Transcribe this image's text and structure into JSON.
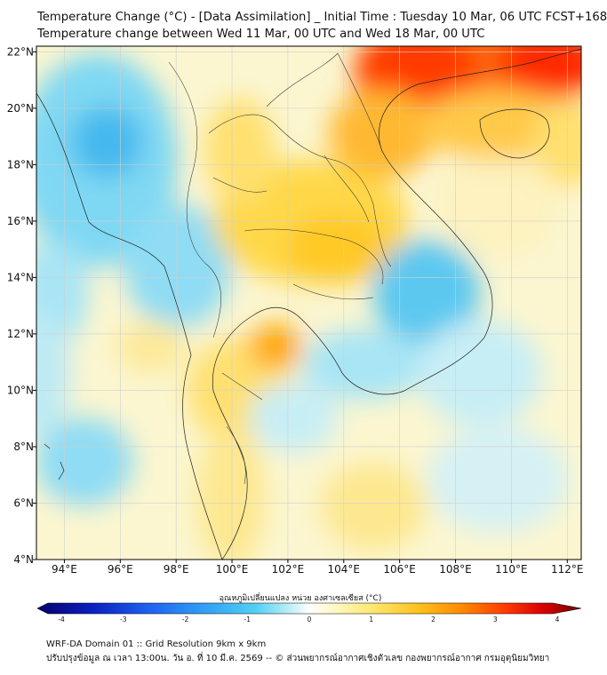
{
  "title_line1": "Temperature Change (°C) - [Data Assimilation] _ Initial Time : Tuesday 10 Mar, 06 UTC FCST+168",
  "title_line2": "Temperature change between Wed 11 Mar, 00 UTC and Wed 18 Mar, 00 UTC",
  "map": {
    "lon_range": [
      93,
      112.5
    ],
    "lat_range": [
      4,
      22.2
    ],
    "lon_ticks": [
      "94°E",
      "96°E",
      "98°E",
      "100°E",
      "102°E",
      "104°E",
      "106°E",
      "108°E",
      "110°E",
      "112°E"
    ],
    "lat_ticks": [
      "22°N",
      "20°N",
      "18°N",
      "16°N",
      "14°N",
      "12°N",
      "10°N",
      "8°N",
      "6°N",
      "4°N"
    ],
    "grid": true
  },
  "colorbar": {
    "label": "อุณหภูมิเปลี่ยนแปลง หน่วย องศาเซลเซียส (°C)",
    "ticks": [
      "-4",
      "-3",
      "-2",
      "-1",
      "0",
      "1",
      "2",
      "3",
      "4"
    ],
    "range": [
      -4,
      4
    ],
    "colors": [
      "#08006e",
      "#0a1fbf",
      "#1e5ef0",
      "#2f9cf5",
      "#4fd0f2",
      "#bdf0f5",
      "#ffffff",
      "#fff8c0",
      "#ffe66a",
      "#ffc21c",
      "#ff8a00",
      "#ff3a00",
      "#d80000",
      "#6e0000"
    ]
  },
  "footer_line1": "WRF-DA Domain 01 :: Grid Resolution 9km x 9km",
  "footer_line2": "ปรับปรุงข้อมูล ณ เวลา 13:00น. วัน อ. ที่ 10 มี.ค. 2569 -- © ส่วนพยากรณ์อากาศเชิงตัวเลข กองพยากรณ์อากาศ กรมอุตุนิยมวิทยา"
}
